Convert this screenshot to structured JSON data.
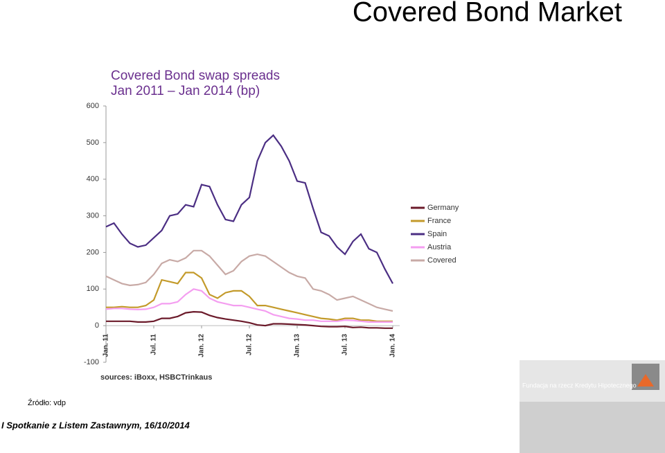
{
  "slide_title": "Covered Bond Market",
  "source_note": "Źródło: vdp",
  "footer": "I Spotkanie z Listem Zastawnym, 16/10/2014",
  "logo_text": "Fundacja na rzecz Kredytu Hipotecznego",
  "chart_data": {
    "type": "line",
    "title": "Covered Bond swap spreads",
    "subtitle": "Jan 2011 – Jan 2014 (bp)",
    "source": "sources: iBoxx, HSBCTrinkaus",
    "x": [
      "2011-01",
      "2011-02",
      "2011-03",
      "2011-04",
      "2011-05",
      "2011-06",
      "2011-07",
      "2011-08",
      "2011-09",
      "2011-10",
      "2011-11",
      "2011-12",
      "2012-01",
      "2012-02",
      "2012-03",
      "2012-04",
      "2012-05",
      "2012-06",
      "2012-07",
      "2012-08",
      "2012-09",
      "2012-10",
      "2012-11",
      "2012-12",
      "2013-01",
      "2013-02",
      "2013-03",
      "2013-04",
      "2013-05",
      "2013-06",
      "2013-07",
      "2013-08",
      "2013-09",
      "2013-10",
      "2013-11",
      "2013-12",
      "2014-01"
    ],
    "xticks": [
      {
        "value": "2011-01",
        "label": "Jan. 11"
      },
      {
        "value": "2011-07",
        "label": "Jul. 11"
      },
      {
        "value": "2012-01",
        "label": "Jan. 12"
      },
      {
        "value": "2012-07",
        "label": "Jul. 12"
      },
      {
        "value": "2013-01",
        "label": "Jan. 13"
      },
      {
        "value": "2013-07",
        "label": "Jul. 13"
      },
      {
        "value": "2014-01",
        "label": "Jan. 14"
      }
    ],
    "ylim": [
      -100,
      600
    ],
    "yticks": [
      -100,
      0,
      100,
      200,
      300,
      400,
      500,
      600
    ],
    "legend": "right",
    "series": [
      {
        "name": "Germany",
        "color": "#6b1a2a",
        "values": [
          12,
          12,
          12,
          12,
          10,
          10,
          12,
          20,
          20,
          25,
          35,
          38,
          37,
          28,
          22,
          18,
          15,
          12,
          8,
          2,
          0,
          5,
          5,
          4,
          3,
          2,
          0,
          -2,
          -3,
          -3,
          -2,
          -5,
          -4,
          -6,
          -6,
          -7,
          -7
        ]
      },
      {
        "name": "France",
        "color": "#c39a2a",
        "values": [
          50,
          50,
          52,
          50,
          50,
          55,
          70,
          125,
          120,
          115,
          145,
          145,
          130,
          85,
          75,
          90,
          95,
          95,
          80,
          55,
          55,
          50,
          45,
          40,
          35,
          30,
          25,
          20,
          18,
          15,
          20,
          20,
          15,
          15,
          12,
          12,
          12
        ]
      },
      {
        "name": "Spain",
        "color": "#4b2e83",
        "values": [
          270,
          280,
          250,
          225,
          215,
          220,
          240,
          260,
          300,
          305,
          330,
          325,
          385,
          380,
          330,
          290,
          285,
          330,
          350,
          450,
          500,
          520,
          490,
          450,
          395,
          390,
          320,
          255,
          245,
          215,
          195,
          230,
          250,
          210,
          200,
          155,
          115
        ]
      },
      {
        "name": "Austria",
        "color": "#f49ef0",
        "values": [
          45,
          47,
          47,
          45,
          44,
          45,
          50,
          60,
          60,
          65,
          85,
          100,
          95,
          75,
          65,
          60,
          55,
          55,
          50,
          45,
          40,
          30,
          25,
          20,
          18,
          15,
          15,
          12,
          12,
          12,
          15,
          14,
          12,
          10,
          10,
          10,
          10
        ]
      },
      {
        "name": "Covered",
        "color": "#c8aaa6",
        "values": [
          135,
          125,
          115,
          110,
          112,
          118,
          140,
          170,
          180,
          175,
          185,
          205,
          205,
          190,
          165,
          140,
          150,
          175,
          190,
          195,
          190,
          175,
          160,
          145,
          135,
          130,
          100,
          95,
          85,
          70,
          75,
          80,
          70,
          60,
          50,
          45,
          40
        ]
      }
    ]
  }
}
